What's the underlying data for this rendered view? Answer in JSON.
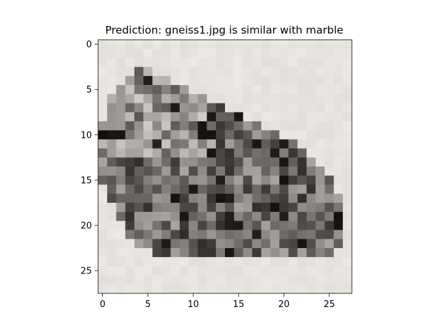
{
  "figure": {
    "title": "Prediction: gneiss1.jpg is similar with marble"
  },
  "chart_data": {
    "type": "heatmap",
    "title": "Prediction: gneiss1.jpg is similar with marble",
    "xlabel": "",
    "ylabel": "",
    "xlim": [
      -0.5,
      27.5
    ],
    "ylim": [
      27.5,
      -0.5
    ],
    "x_ticks": [
      0,
      5,
      10,
      15,
      20,
      25
    ],
    "x_tick_labels": [
      "0",
      "5",
      "10",
      "15",
      "20",
      "25"
    ],
    "y_ticks": [
      0,
      5,
      10,
      15,
      20,
      25
    ],
    "y_tick_labels": [
      "0",
      "5",
      "10",
      "15",
      "20",
      "25"
    ],
    "grid": false,
    "colormap": "grayscale pixels (dark rock on light background)",
    "background_color": "#e6e1da",
    "pixel_rows": 28,
    "pixel_cols": 28
  }
}
